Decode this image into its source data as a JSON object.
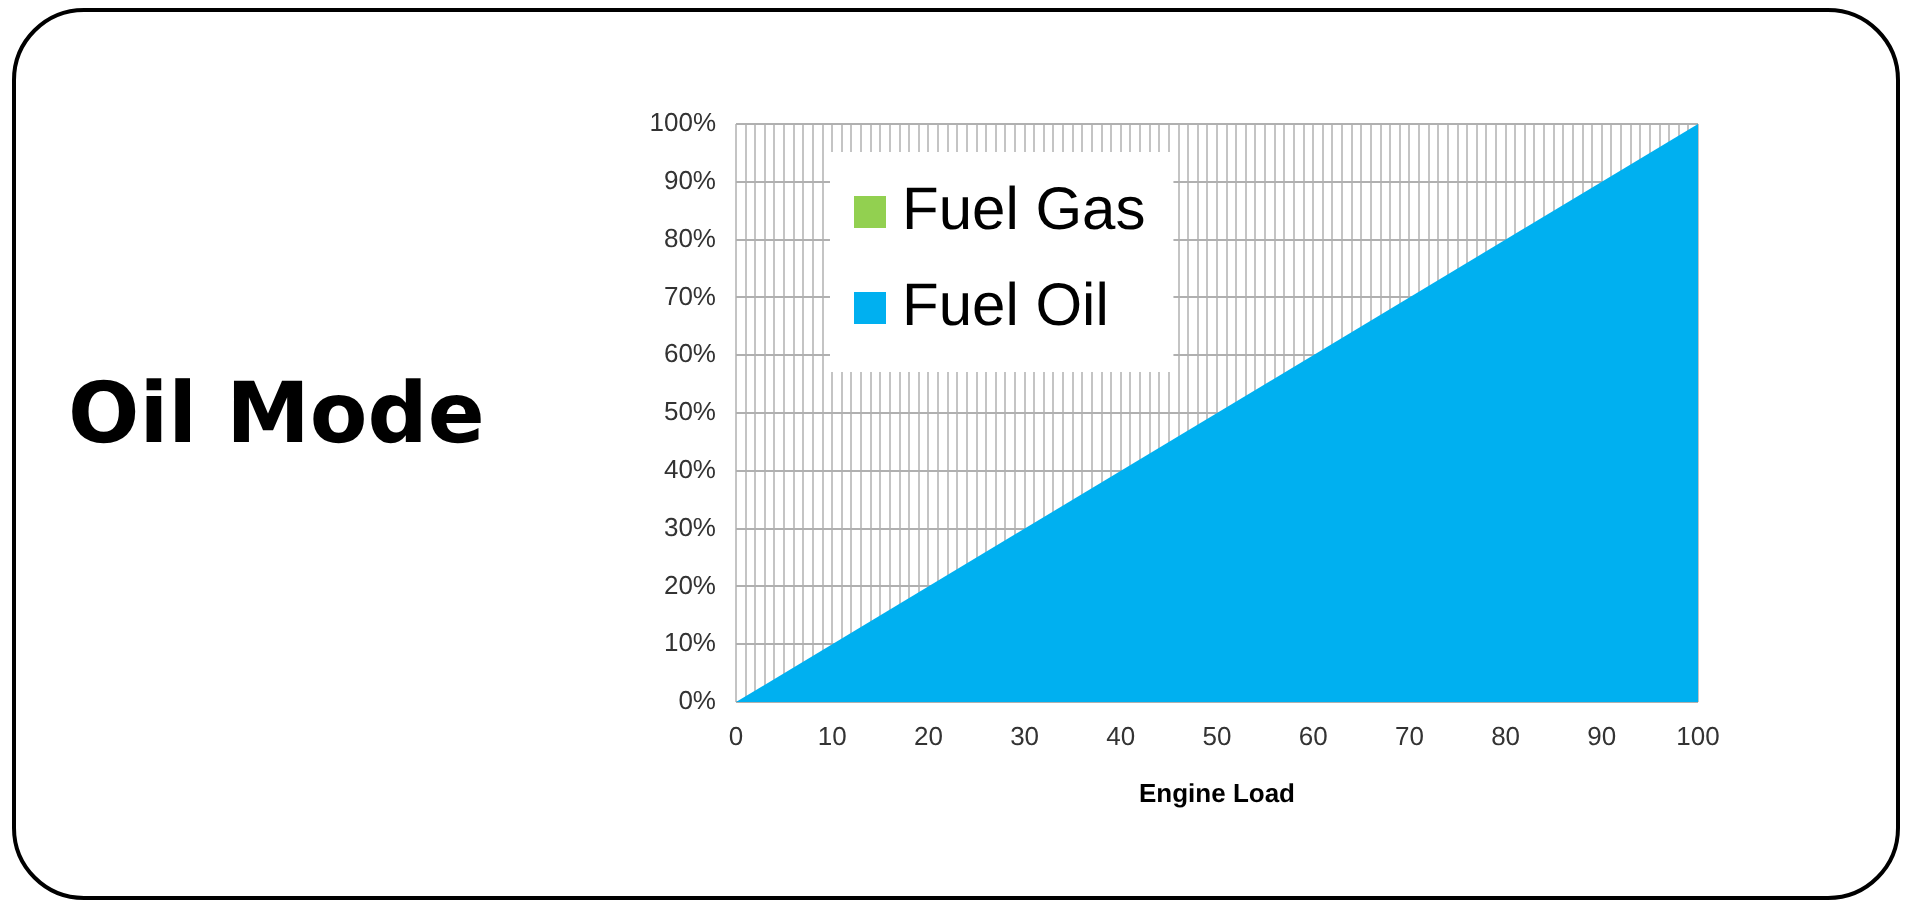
{
  "chart_data": {
    "type": "area",
    "title": "Oil Mode",
    "xlabel": "Engine Load",
    "x": [
      0,
      100
    ],
    "series": [
      {
        "name": "Fuel Gas",
        "color": "#92d050",
        "values": [
          null,
          null
        ]
      },
      {
        "name": "Fuel Oil",
        "color": "#00b0f0",
        "values": [
          0,
          100
        ]
      }
    ],
    "xlim": [
      0,
      100
    ],
    "xticks": [
      0,
      {
        "value": 1,
        "label": null
      },
      {
        "value": 2,
        "label": null
      },
      {
        "value": 3,
        "label": null
      },
      {
        "value": 4,
        "label": null
      },
      {
        "value": 5,
        "label": null
      },
      {
        "value": 6,
        "label": null
      },
      {
        "value": 7,
        "label": null
      },
      {
        "value": 8,
        "label": null
      },
      {
        "value": 9,
        "label": null
      },
      10,
      {
        "value": 11,
        "label": null
      },
      {
        "value": 12,
        "label": null
      },
      {
        "value": 13,
        "label": null
      },
      {
        "value": 14,
        "label": null
      },
      {
        "value": 15,
        "label": null
      },
      {
        "value": 16,
        "label": null
      },
      {
        "value": 17,
        "label": null
      },
      {
        "value": 18,
        "label": null
      },
      {
        "value": 19,
        "label": null
      },
      20,
      {
        "value": 21,
        "label": null
      },
      {
        "value": 22,
        "label": null
      },
      {
        "value": 23,
        "label": null
      },
      {
        "value": 24,
        "label": null
      },
      {
        "value": 25,
        "label": null
      },
      {
        "value": 26,
        "label": null
      },
      {
        "value": 27,
        "label": null
      },
      {
        "value": 28,
        "label": null
      },
      {
        "value": 29,
        "label": null
      },
      30,
      {
        "value": 31,
        "label": null
      },
      {
        "value": 32,
        "label": null
      },
      {
        "value": 33,
        "label": null
      },
      {
        "value": 34,
        "label": null
      },
      {
        "value": 35,
        "label": null
      },
      {
        "value": 36,
        "label": null
      },
      {
        "value": 37,
        "label": null
      },
      {
        "value": 38,
        "label": null
      },
      {
        "value": 39,
        "label": null
      },
      40,
      {
        "value": 41,
        "label": null
      },
      {
        "value": 42,
        "label": null
      },
      {
        "value": 43,
        "label": null
      },
      {
        "value": 44,
        "label": null
      },
      {
        "value": 45,
        "label": null
      },
      {
        "value": 46,
        "label": null
      },
      {
        "value": 47,
        "label": null
      },
      {
        "value": 48,
        "label": null
      },
      {
        "value": 49,
        "label": null
      },
      50,
      {
        "value": 51,
        "label": null
      },
      {
        "value": 52,
        "label": null
      },
      {
        "value": 53,
        "label": null
      },
      {
        "value": 54,
        "label": null
      },
      {
        "value": 55,
        "label": null
      },
      {
        "value": 56,
        "label": null
      },
      {
        "value": 57,
        "label": null
      },
      {
        "value": 58,
        "label": null
      },
      {
        "value": 59,
        "label": null
      },
      60,
      {
        "value": 61,
        "label": null
      },
      {
        "value": 62,
        "label": null
      },
      {
        "value": 63,
        "label": null
      },
      {
        "value": 64,
        "label": null
      },
      {
        "value": 65,
        "label": null
      },
      {
        "value": 66,
        "label": null
      },
      {
        "value": 67,
        "label": null
      },
      {
        "value": 68,
        "label": null
      },
      {
        "value": 69,
        "label": null
      },
      70,
      {
        "value": 71,
        "label": null
      },
      {
        "value": 72,
        "label": null
      },
      {
        "value": 73,
        "label": null
      },
      {
        "value": 74,
        "label": null
      },
      {
        "value": 75,
        "label": null
      },
      {
        "value": 76,
        "label": null
      },
      {
        "value": 77,
        "label": null
      },
      {
        "value": 78,
        "label": null
      },
      {
        "value": 79,
        "label": null
      },
      80,
      {
        "value": 81,
        "label": null
      },
      {
        "value": 82,
        "label": null
      },
      {
        "value": 83,
        "label": null
      },
      {
        "value": 84,
        "label": null
      },
      {
        "value": 85,
        "label": null
      },
      {
        "value": 86,
        "label": null
      },
      {
        "value": 87,
        "label": null
      },
      {
        "value": 88,
        "label": null
      },
      {
        "value": 89,
        "label": null
      },
      90,
      {
        "value": 91,
        "label": null
      },
      {
        "value": 92,
        "label": null
      },
      {
        "value": 93,
        "label": null
      },
      {
        "value": 94,
        "label": null
      },
      {
        "value": 95,
        "label": null
      },
      {
        "value": 96,
        "label": null
      },
      {
        "value": 97,
        "label": null
      },
      {
        "value": 98,
        "label": null
      },
      {
        "value": 99,
        "label": null
      },
      100
    ],
    "ylim": [
      0,
      100
    ],
    "yticks": [
      {
        "value": 0,
        "label": "0%"
      },
      {
        "value": 10,
        "label": "10%"
      },
      {
        "value": 20,
        "label": "20%"
      },
      {
        "value": 30,
        "label": "30%"
      },
      {
        "value": 40,
        "label": "40%"
      },
      {
        "value": 50,
        "label": "50%"
      },
      {
        "value": 60,
        "label": "60%"
      },
      {
        "value": 70,
        "label": "70%"
      },
      {
        "value": 80,
        "label": "80%"
      },
      {
        "value": 90,
        "label": "90%"
      },
      {
        "value": 100,
        "label": "100%"
      }
    ],
    "grid": true,
    "legend": "top left"
  }
}
